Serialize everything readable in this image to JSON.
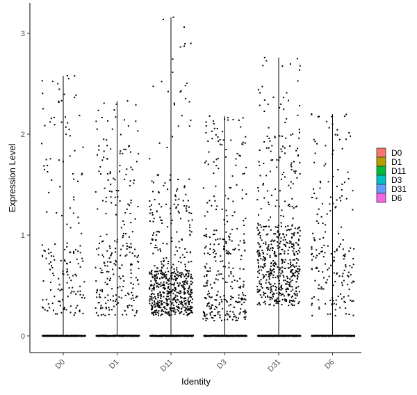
{
  "chart_data": {
    "type": "violin-jitter",
    "title": "",
    "xlabel": "Identity",
    "ylabel": "Expression Level",
    "ylim": [
      -0.18,
      3.25
    ],
    "y_ticks": [
      0,
      1,
      2,
      3
    ],
    "grid": false,
    "legend_position": "right",
    "categories": [
      "D0",
      "D1",
      "D11",
      "D3",
      "D31",
      "D6"
    ],
    "series": [
      {
        "name": "D0",
        "color": "#F8766D",
        "max": 2.58,
        "n_zero": 220,
        "n_expr": 170,
        "dist": [
          [
            0.2,
            0.9,
            0.6
          ],
          [
            0.9,
            1.9,
            0.25
          ],
          [
            1.9,
            2.58,
            0.15
          ]
        ]
      },
      {
        "name": "D1",
        "color": "#B79F00",
        "max": 2.33,
        "n_zero": 230,
        "n_expr": 260,
        "dist": [
          [
            0.2,
            0.9,
            0.6
          ],
          [
            0.9,
            1.9,
            0.3
          ],
          [
            1.9,
            2.33,
            0.1
          ]
        ]
      },
      {
        "name": "D11",
        "color": "#00BA38",
        "max": 3.16,
        "n_zero": 300,
        "n_expr": 620,
        "dist": [
          [
            0.2,
            0.65,
            0.72
          ],
          [
            0.65,
            1.6,
            0.23
          ],
          [
            1.6,
            3.16,
            0.05
          ]
        ]
      },
      {
        "name": "D3",
        "color": "#00BFC4",
        "max": 2.18,
        "n_zero": 230,
        "n_expr": 330,
        "dist": [
          [
            0.15,
            0.4,
            0.35
          ],
          [
            0.4,
            1.0,
            0.35
          ],
          [
            1.0,
            2.18,
            0.3
          ]
        ]
      },
      {
        "name": "D31",
        "color": "#619CFF",
        "max": 2.76,
        "n_zero": 260,
        "n_expr": 560,
        "dist": [
          [
            0.3,
            1.1,
            0.78
          ],
          [
            1.1,
            2.0,
            0.17
          ],
          [
            2.0,
            2.76,
            0.05
          ]
        ]
      },
      {
        "name": "D6",
        "color": "#F564E3",
        "max": 2.2,
        "n_zero": 220,
        "n_expr": 200,
        "dist": [
          [
            0.2,
            0.9,
            0.6
          ],
          [
            0.9,
            1.5,
            0.2
          ],
          [
            1.5,
            2.2,
            0.2
          ]
        ]
      }
    ]
  },
  "legend": {
    "items": [
      {
        "label": "D0",
        "color": "#F8766D"
      },
      {
        "label": "D1",
        "color": "#B79F00"
      },
      {
        "label": "D11",
        "color": "#00BA38"
      },
      {
        "label": "D3",
        "color": "#00BFC4"
      },
      {
        "label": "D31",
        "color": "#619CFF"
      },
      {
        "label": "D6",
        "color": "#F564E3"
      }
    ]
  }
}
